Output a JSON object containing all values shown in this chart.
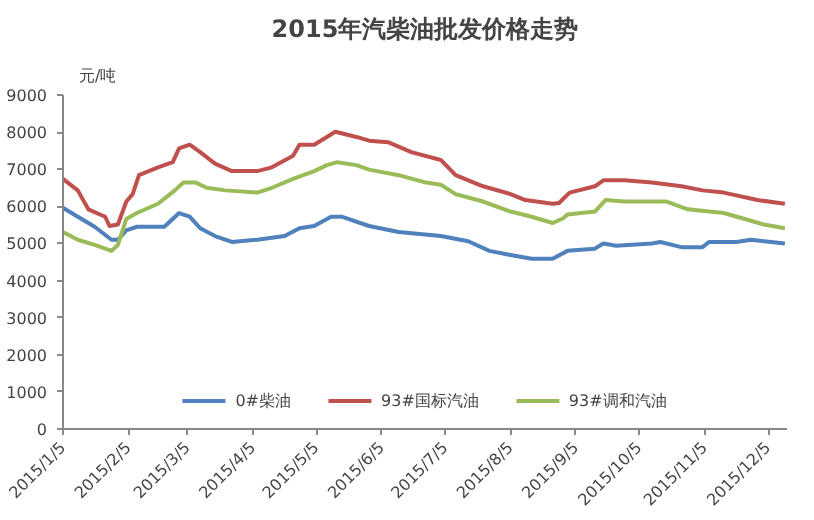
{
  "chart_data": {
    "type": "line",
    "title": "2015年汽柴油批发价格走势",
    "ylabel": "元/吨",
    "xlim": [
      "2015-01-05",
      "2015-12-14"
    ],
    "xticks": [
      {
        "value": "2015-01-05",
        "label": "2015/1/5"
      },
      {
        "value": "2015-02-05",
        "label": "2015/2/5"
      },
      {
        "value": "2015-03-05",
        "label": "2015/3/5"
      },
      {
        "value": "2015-04-05",
        "label": "2015/4/5"
      },
      {
        "value": "2015-05-05",
        "label": "2015/5/5"
      },
      {
        "value": "2015-06-05",
        "label": "2015/6/5"
      },
      {
        "value": "2015-07-05",
        "label": "2015/7/5"
      },
      {
        "value": "2015-08-05",
        "label": "2015/8/5"
      },
      {
        "value": "2015-09-05",
        "label": "2015/9/5"
      },
      {
        "value": "2015-10-05",
        "label": "2015/10/5"
      },
      {
        "value": "2015-11-05",
        "label": "2015/11/5"
      },
      {
        "value": "2015-12-05",
        "label": "2015/12/5"
      }
    ],
    "ylim": [
      0,
      9000
    ],
    "yticks": [
      0,
      1000,
      2000,
      3000,
      4000,
      5000,
      6000,
      7000,
      8000,
      9000
    ],
    "grid": false,
    "legend": "bottom",
    "marker": "none",
    "line_style": "solid",
    "series": [
      {
        "name": "0#柴油",
        "color": "#4f81bd",
        "x": [
          "2015-01-05",
          "2015-01-12",
          "2015-01-20",
          "2015-01-28",
          "2015-01-31",
          "2015-02-04",
          "2015-02-09",
          "2015-02-22",
          "2015-03-01",
          "2015-03-06",
          "2015-03-11",
          "2015-03-18",
          "2015-03-26",
          "2015-04-07",
          "2015-04-20",
          "2015-04-27",
          "2015-05-04",
          "2015-05-12",
          "2015-05-17",
          "2015-05-30",
          "2015-06-13",
          "2015-07-03",
          "2015-07-16",
          "2015-07-26",
          "2015-08-05",
          "2015-08-15",
          "2015-08-25",
          "2015-09-01",
          "2015-09-14",
          "2015-09-18",
          "2015-09-24",
          "2015-10-11",
          "2015-10-15",
          "2015-10-25",
          "2015-11-04",
          "2015-11-07",
          "2015-11-20",
          "2015-11-27",
          "2015-12-13"
        ],
        "values": [
          5960,
          5720,
          5450,
          5100,
          5100,
          5350,
          5450,
          5450,
          5820,
          5720,
          5410,
          5200,
          5040,
          5100,
          5200,
          5410,
          5470,
          5720,
          5720,
          5470,
          5310,
          5200,
          5060,
          4800,
          4690,
          4590,
          4590,
          4800,
          4860,
          5000,
          4940,
          5000,
          5040,
          4900,
          4900,
          5040,
          5040,
          5100,
          5000
        ]
      },
      {
        "name": "93#国标汽油",
        "color": "#c0504d",
        "x": [
          "2015-01-05",
          "2015-01-12",
          "2015-01-17",
          "2015-01-25",
          "2015-01-27",
          "2015-01-31",
          "2015-02-04",
          "2015-02-07",
          "2015-02-10",
          "2015-02-19",
          "2015-02-26",
          "2015-03-01",
          "2015-03-06",
          "2015-03-11",
          "2015-03-18",
          "2015-03-26",
          "2015-04-07",
          "2015-04-14",
          "2015-04-24",
          "2015-04-27",
          "2015-05-04",
          "2015-05-10",
          "2015-05-14",
          "2015-05-24",
          "2015-05-30",
          "2015-06-08",
          "2015-06-19",
          "2015-07-03",
          "2015-07-10",
          "2015-07-23",
          "2015-08-05",
          "2015-08-12",
          "2015-08-25",
          "2015-08-28",
          "2015-09-02",
          "2015-09-14",
          "2015-09-18",
          "2015-09-28",
          "2015-10-11",
          "2015-10-25",
          "2015-11-04",
          "2015-11-14",
          "2015-11-30",
          "2015-12-13"
        ],
        "values": [
          6740,
          6430,
          5920,
          5720,
          5470,
          5510,
          6130,
          6330,
          6840,
          7050,
          7190,
          7560,
          7660,
          7460,
          7150,
          6950,
          6950,
          7050,
          7360,
          7660,
          7660,
          7870,
          8010,
          7870,
          7770,
          7730,
          7460,
          7250,
          6840,
          6540,
          6330,
          6170,
          6070,
          6090,
          6370,
          6540,
          6700,
          6700,
          6640,
          6540,
          6430,
          6370,
          6170,
          6070
        ]
      },
      {
        "name": "93#调和汽油",
        "color": "#9bbb59",
        "x": [
          "2015-01-05",
          "2015-01-12",
          "2015-01-20",
          "2015-01-28",
          "2015-01-31",
          "2015-02-04",
          "2015-02-09",
          "2015-02-19",
          "2015-02-27",
          "2015-03-03",
          "2015-03-09",
          "2015-03-14",
          "2015-03-23",
          "2015-04-07",
          "2015-04-14",
          "2015-04-24",
          "2015-05-04",
          "2015-05-10",
          "2015-05-15",
          "2015-05-24",
          "2015-05-30",
          "2015-06-13",
          "2015-06-26",
          "2015-07-03",
          "2015-07-10",
          "2015-07-23",
          "2015-08-05",
          "2015-08-15",
          "2015-08-25",
          "2015-08-30",
          "2015-09-01",
          "2015-09-14",
          "2015-09-19",
          "2015-09-28",
          "2015-10-18",
          "2015-10-28",
          "2015-11-14",
          "2015-11-24",
          "2015-12-03",
          "2015-12-13"
        ],
        "values": [
          5310,
          5100,
          4960,
          4800,
          4960,
          5660,
          5820,
          6070,
          6430,
          6640,
          6640,
          6500,
          6430,
          6370,
          6500,
          6740,
          6950,
          7110,
          7190,
          7110,
          6990,
          6840,
          6640,
          6580,
          6330,
          6130,
          5860,
          5720,
          5550,
          5680,
          5780,
          5860,
          6170,
          6130,
          6130,
          5920,
          5820,
          5660,
          5510,
          5410
        ]
      }
    ]
  }
}
